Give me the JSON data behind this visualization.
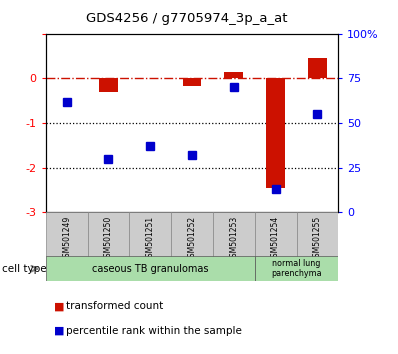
{
  "title": "GDS4256 / g7705974_3p_a_at",
  "samples": [
    "GSM501249",
    "GSM501250",
    "GSM501251",
    "GSM501252",
    "GSM501253",
    "GSM501254",
    "GSM501255"
  ],
  "red_values": [
    0.0,
    -0.3,
    0.0,
    -0.18,
    0.15,
    -2.45,
    0.45
  ],
  "blue_values": [
    62,
    30,
    37,
    32,
    70,
    13,
    55
  ],
  "ylim_left": [
    -3,
    1
  ],
  "ylim_right": [
    0,
    100
  ],
  "yticks_left": [
    -3,
    -2,
    -1,
    0,
    1
  ],
  "yticks_right": [
    0,
    25,
    50,
    75,
    100
  ],
  "yticklabels_right": [
    "0",
    "25",
    "50",
    "75",
    "100%"
  ],
  "dotted_lines": [
    -1,
    -2
  ],
  "red_color": "#CC1100",
  "blue_color": "#0000CC",
  "dashed_line_color": "#CC1100",
  "bar_width": 0.45,
  "marker_size": 6
}
